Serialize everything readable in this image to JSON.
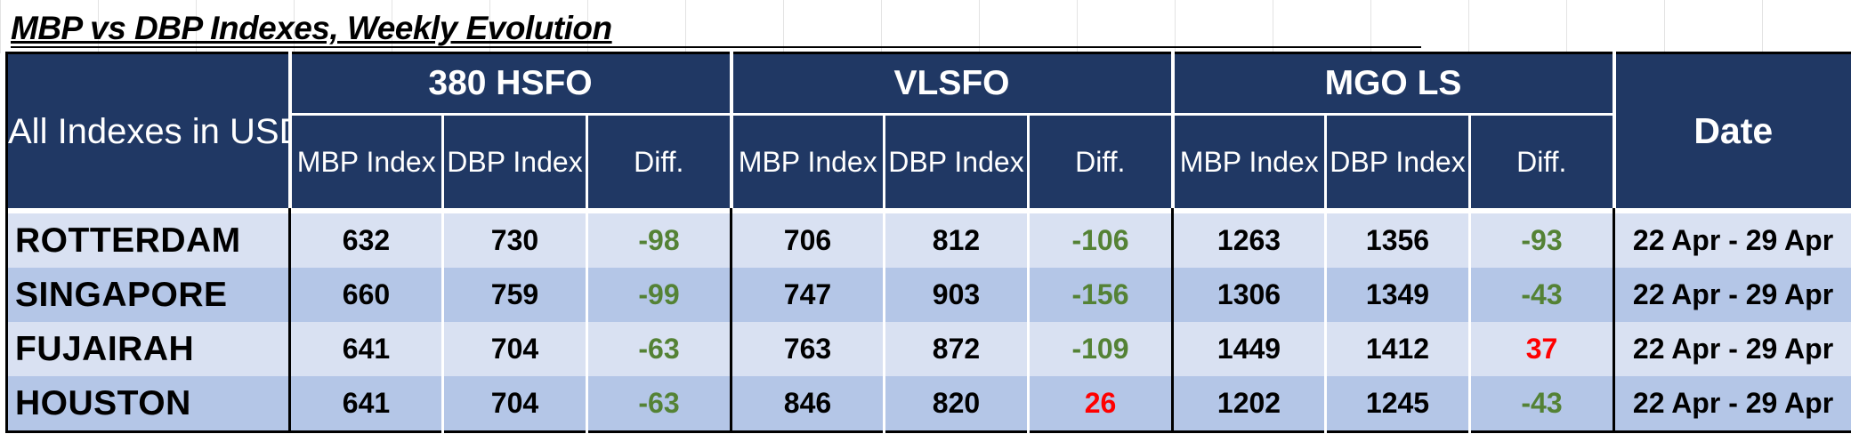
{
  "title": "MBP vs DBP Indexes, Weekly Evolution",
  "corner_label": "All Indexes in USD/MT",
  "groups": [
    "380 HSFO",
    "VLSFO",
    "MGO LS"
  ],
  "sub_headers": {
    "mbp": "MBP Index",
    "dbp": "DBP Index",
    "diff": "Diff."
  },
  "date_header": "Date",
  "colors": {
    "header_bg": "#203864",
    "row_light": "#d9e1f2",
    "row_dark": "#b4c6e7",
    "negative": "#548235",
    "positive": "#ff0000"
  },
  "rows": [
    {
      "city": "ROTTERDAM",
      "hsfo": [
        "632",
        "730",
        "-98"
      ],
      "vlsfo": [
        "706",
        "812",
        "-106"
      ],
      "mgo": [
        "1263",
        "1356",
        "-93"
      ],
      "date": "22 Apr - 29 Apr"
    },
    {
      "city": "SINGAPORE",
      "hsfo": [
        "660",
        "759",
        "-99"
      ],
      "vlsfo": [
        "747",
        "903",
        "-156"
      ],
      "mgo": [
        "1306",
        "1349",
        "-43"
      ],
      "date": "22 Apr - 29 Apr"
    },
    {
      "city": "FUJAIRAH",
      "hsfo": [
        "641",
        "704",
        "-63"
      ],
      "vlsfo": [
        "763",
        "872",
        "-109"
      ],
      "mgo": [
        "1449",
        "1412",
        "37"
      ],
      "date": "22 Apr - 29 Apr"
    },
    {
      "city": "HOUSTON",
      "hsfo": [
        "641",
        "704",
        "-63"
      ],
      "vlsfo": [
        "846",
        "820",
        "26"
      ],
      "mgo": [
        "1202",
        "1245",
        "-43"
      ],
      "date": "22 Apr - 29 Apr"
    }
  ]
}
